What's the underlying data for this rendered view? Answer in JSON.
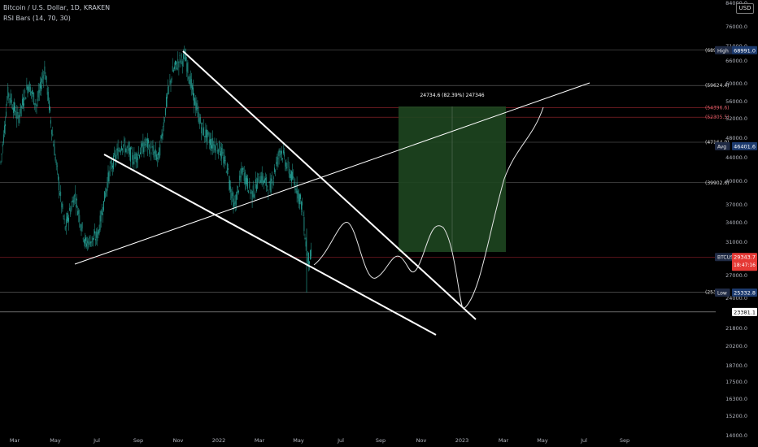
{
  "header": {
    "title": "Bitcoin / U.S. Dollar, 1D, KRAKEN",
    "indicator": "RSI Bars (14, 70, 30)",
    "currency": "USD"
  },
  "chart_data": {
    "type": "candlestick",
    "price_axis_ticks": [
      "84000.0",
      "76000.0",
      "71000.0",
      "66000.0",
      "60000.0",
      "56000.0",
      "52000.0",
      "48000.0",
      "44000.0",
      "40000.0",
      "37000.0",
      "34000.0",
      "31000.0",
      "29000.0",
      "27000.0",
      "24000.0",
      "21800.0",
      "20200.0",
      "18700.0",
      "17500.0",
      "16300.0",
      "15200.0",
      "14000.0"
    ],
    "time_axis_ticks": [
      "Mar",
      "May",
      "Jul",
      "Sep",
      "Nov",
      "2022",
      "Mar",
      "May",
      "Jul",
      "Sep",
      "Nov",
      "2023",
      "Mar",
      "May",
      "Jul",
      "Sep"
    ],
    "ylim": [
      14000,
      84000
    ],
    "log_scale": true,
    "colors": {
      "up": "#26a69a",
      "down": "#26a69a",
      "accent_red": "#f23645",
      "target_box": "#1e4620"
    },
    "price_lines": [
      {
        "label": "(689",
        "value": 69000,
        "color": "#888888"
      },
      {
        "label": "(59624.4)",
        "value": 59624,
        "color": "#888888"
      },
      {
        "label": "(54396.6)",
        "value": 54396,
        "color": "#c9333c"
      },
      {
        "label": "(52305.5)",
        "value": 52305,
        "color": "#c9333c"
      },
      {
        "label": "(47164.9)",
        "value": 47164,
        "color": "#888888"
      },
      {
        "label": "(39902.6)",
        "value": 39902,
        "color": "#888888"
      },
      {
        "label": "(25381.4)",
        "value": 25381,
        "color": "#888888"
      }
    ],
    "badges": [
      {
        "label": "High",
        "value": "68991.0",
        "price": 68991,
        "color": "#1c3a6e"
      },
      {
        "label": "Avg",
        "value": "46401.6",
        "price": 46401,
        "color": "#1c3a6e"
      },
      {
        "label": "BTCUSD",
        "value": "29343.7",
        "sub": "18:47:16",
        "price": 29343,
        "color": "#e53935"
      },
      {
        "label": "Low",
        "value": "25332.8",
        "price": 25332,
        "color": "#1c3a6e"
      }
    ],
    "cursor_price": "23381.1",
    "cursor_value": 23381,
    "target_label": "24734.6 (82.39%) 247346",
    "target_box": {
      "price_low": 29800,
      "price_high": 54396
    }
  }
}
